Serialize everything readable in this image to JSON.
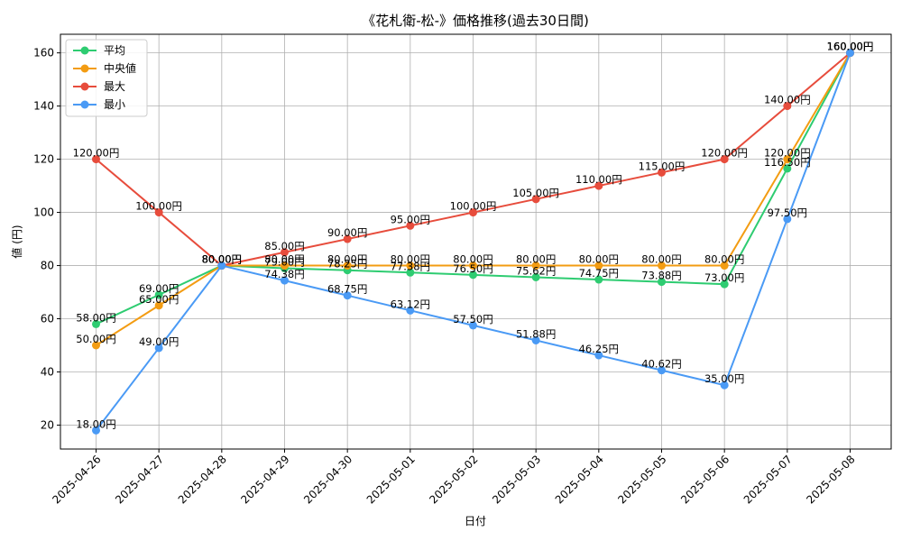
{
  "chart_data": {
    "type": "line",
    "title": "《花札衛-松-》価格推移(過去30日間)",
    "xlabel": "日付",
    "ylabel": "値 (円)",
    "ylim": [
      11,
      167
    ],
    "yticks": [
      20,
      40,
      60,
      80,
      100,
      120,
      140,
      160
    ],
    "categories": [
      "2025-04-26",
      "2025-04-27",
      "2025-04-28",
      "2025-04-29",
      "2025-04-30",
      "2025-05-01",
      "2025-05-02",
      "2025-05-03",
      "2025-05-04",
      "2025-05-05",
      "2025-05-06",
      "2025-05-07",
      "2025-05-08"
    ],
    "grid": true,
    "legend_position": "top-left",
    "point_label_suffix": "円",
    "series": [
      {
        "name": "平均",
        "color": "#2ecc71",
        "values": [
          58.0,
          69.0,
          80.0,
          79.0,
          78.25,
          77.38,
          76.5,
          75.62,
          74.75,
          73.88,
          73.0,
          116.5,
          160.0
        ]
      },
      {
        "name": "中央値",
        "color": "#f39c12",
        "values": [
          50.0,
          65.0,
          80.0,
          80.0,
          80.0,
          80.0,
          80.0,
          80.0,
          80.0,
          80.0,
          80.0,
          120.0,
          160.0
        ]
      },
      {
        "name": "最大",
        "color": "#e74c3c",
        "values": [
          120.0,
          100.0,
          80.0,
          85.0,
          90.0,
          95.0,
          100.0,
          105.0,
          110.0,
          115.0,
          120.0,
          140.0,
          160.0
        ]
      },
      {
        "name": "最小",
        "color": "#4a9af5",
        "values": [
          18.0,
          49.0,
          80.0,
          74.38,
          68.75,
          63.12,
          57.5,
          51.88,
          46.25,
          40.62,
          35.0,
          97.5,
          160.0
        ]
      }
    ]
  }
}
